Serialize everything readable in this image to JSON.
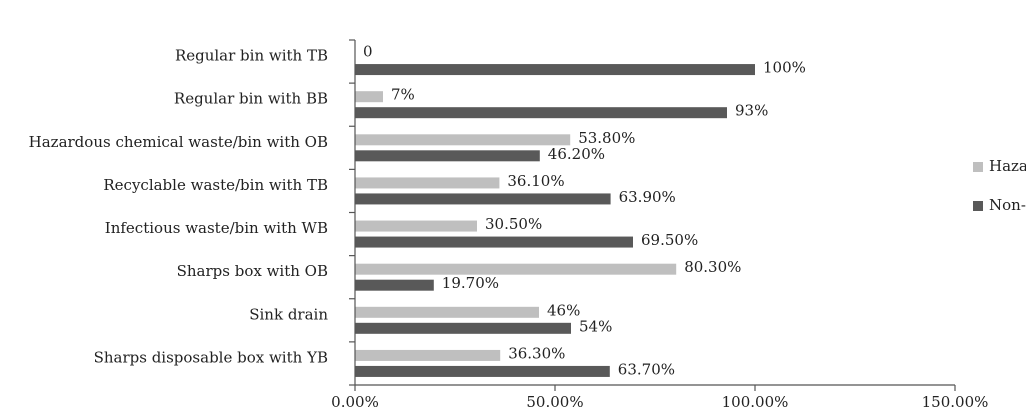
{
  "chart_data": {
    "type": "bar",
    "orientation": "horizontal",
    "categories": [
      "Regular bin with TB",
      "Regular bin with BB",
      "Hazardous chemical waste/bin with OB",
      "Recyclable waste/bin with TB",
      "Infectious waste/bin with WB",
      "Sharps box with OB",
      "Sink drain",
      "Sharps disposable box with YB"
    ],
    "series": [
      {
        "name": "Hazardous",
        "color": "#bfbfbf",
        "values": [
          0,
          7,
          53.8,
          36.1,
          30.5,
          80.3,
          46,
          36.3
        ],
        "labels": [
          "0",
          "7%",
          "53.80%",
          "36.10%",
          "30.50%",
          "80.30%",
          "46%",
          "36.30%"
        ]
      },
      {
        "name": "Non-hazardous",
        "color": "#595959",
        "values": [
          100,
          93,
          46.2,
          63.9,
          69.5,
          19.7,
          54,
          63.7
        ],
        "labels": [
          "100%",
          "93%",
          "46.20%",
          "63.90%",
          "69.50%",
          "19.70%",
          "54%",
          "63.70%"
        ]
      }
    ],
    "xlim": [
      0,
      150
    ],
    "xticks": [
      0,
      50,
      100,
      150
    ],
    "xtick_labels": [
      "0.00%",
      "50.00%",
      "100.00%",
      "150.00%"
    ],
    "title": "",
    "xlabel": "",
    "ylabel": "",
    "grid": false,
    "legend_position": "right"
  }
}
